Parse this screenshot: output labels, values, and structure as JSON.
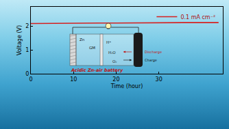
{
  "chart_data": {
    "type": "line",
    "x_label": "Time (hour)",
    "y_label": "Voltage (V)",
    "x": [
      0,
      4,
      8,
      12,
      16,
      20,
      24,
      28,
      32,
      36,
      40,
      44
    ],
    "series": [
      {
        "name": "0.1 mA cm⁻²",
        "color": "#d62020",
        "values": [
          2.1,
          2.11,
          2.11,
          2.12,
          2.12,
          2.12,
          2.13,
          2.13,
          2.13,
          2.14,
          2.14,
          2.14
        ]
      }
    ],
    "xlim": [
      0,
      45
    ],
    "xticks": [
      0,
      10,
      20,
      30
    ],
    "ylim": [
      0,
      2.8
    ],
    "yticks": [
      0,
      1,
      2
    ],
    "legend": "top right"
  },
  "inset": {
    "title": "Acidic Zn-air battery",
    "labels": {
      "anode": "Zn",
      "membrane": "GM",
      "ion": "H⁺",
      "water": "H₂O",
      "oxygen": "O₂",
      "discharge": "Discharge",
      "charge": "Charge"
    }
  }
}
